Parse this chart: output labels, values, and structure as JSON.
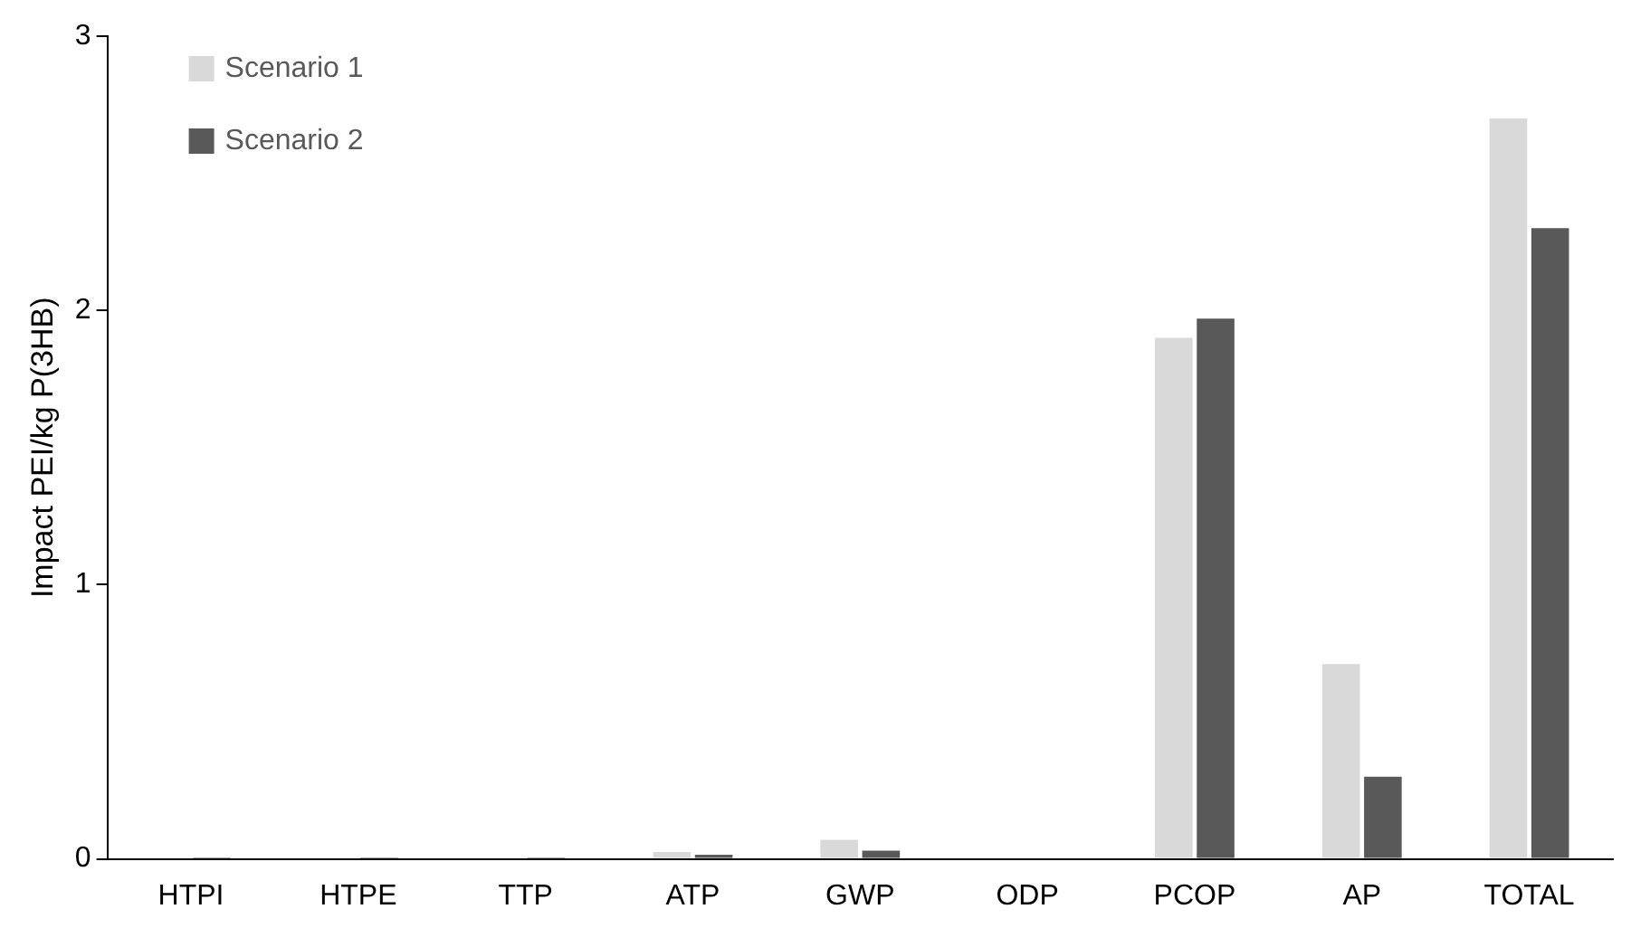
{
  "chart_data": {
    "type": "bar",
    "ylabel": "Impact PEI/kg P(3HB)",
    "categories": [
      "HTPI",
      "HTPE",
      "TTP",
      "ATP",
      "GWP",
      "ODP",
      "PCOP",
      "AP",
      "TOTAL"
    ],
    "series": [
      {
        "name": "Scenario 1",
        "color": "#d9d9d9",
        "values": [
          null,
          null,
          null,
          0.025,
          0.07,
          0,
          1.9,
          0.71,
          2.7
        ]
      },
      {
        "name": "Scenario 2",
        "color": "#595959",
        "values": [
          0.005,
          0.005,
          0.005,
          0.015,
          0.03,
          0,
          1.97,
          0.3,
          2.3
        ]
      }
    ],
    "ylim": [
      0,
      3
    ],
    "yticks": [
      0,
      1,
      2,
      3
    ],
    "grid": false,
    "legend": "top left"
  }
}
